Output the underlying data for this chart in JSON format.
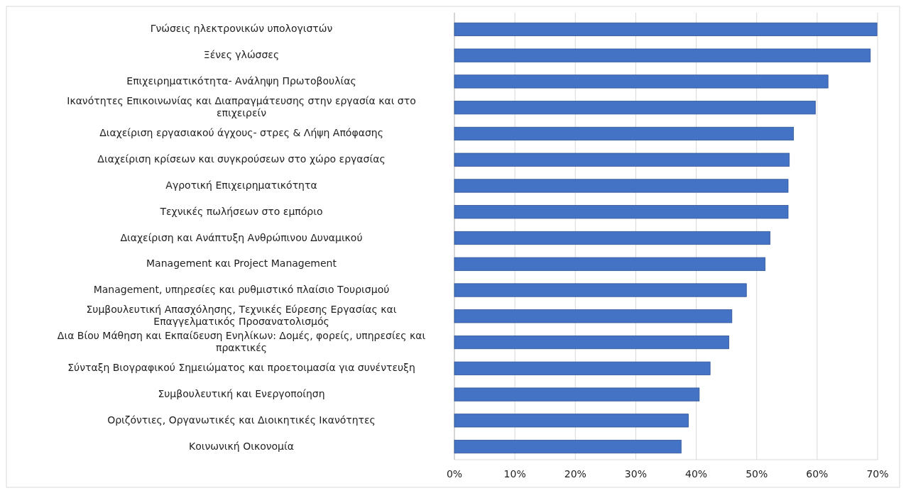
{
  "chart_data": {
    "type": "bar",
    "orientation": "horizontal",
    "categories": [
      "Γνώσεις ηλεκτρονικών υπολογιστών",
      "Ξένες γλώσσες",
      "Επιχειρηματικότητα- Ανάληψη Πρωτοβουλίας",
      "Ικανότητες Επικοινωνίας και Διαπραγμάτευσης στην εργασία και στο επιχειρείν",
      "Διαχείριση εργασιακού άγχους- στρες & Λήψη Απόφασης",
      "Διαχείριση κρίσεων και συγκρούσεων στο χώρο εργασίας",
      "Αγροτική Επιχειρηματικότητα",
      "Τεχνικές πωλήσεων στο εμπόριο",
      "Διαχείριση και Ανάπτυξη Ανθρώπινου Δυναμικού",
      "Management και Project Management",
      "Management, υπηρεσίες και ρυθμιστικό πλαίσιο Τουρισμού",
      "Συμβουλευτική Απασχόλησης, Τεχνικές Εύρεσης Εργασίας και Επαγγελματικός Προσανατολισμός",
      "Δια Βίου Μάθηση και Εκπαίδευση Ενηλίκων: Δομές, φορείς, υπηρεσίες και πρακτικές",
      "Σύνταξη Βιογραφικού Σημειώματος και προετοιμασία για συνέντευξη",
      "Συμβουλευτική και Ενεργοποίηση",
      "Οριζόντιες, Οργανωτικές και Διοικητικές Ικανότητες",
      "Κοινωνική Οικονομία"
    ],
    "values": [
      69.9,
      68.8,
      61.8,
      59.7,
      56.1,
      55.4,
      55.2,
      55.2,
      52.2,
      51.4,
      48.3,
      45.9,
      45.4,
      42.3,
      40.5,
      38.7,
      37.5
    ],
    "color": "#4472c4",
    "xlim": [
      0,
      70
    ],
    "xticks": [
      {
        "value": 0,
        "label": "0%"
      },
      {
        "value": 10,
        "label": "10%"
      },
      {
        "value": 20,
        "label": "20%"
      },
      {
        "value": 30,
        "label": "30%"
      },
      {
        "value": 40,
        "label": "40%"
      },
      {
        "value": 50,
        "label": "50%"
      },
      {
        "value": 60,
        "label": "60%"
      },
      {
        "value": 70,
        "label": "70%"
      }
    ],
    "grid": "x"
  }
}
